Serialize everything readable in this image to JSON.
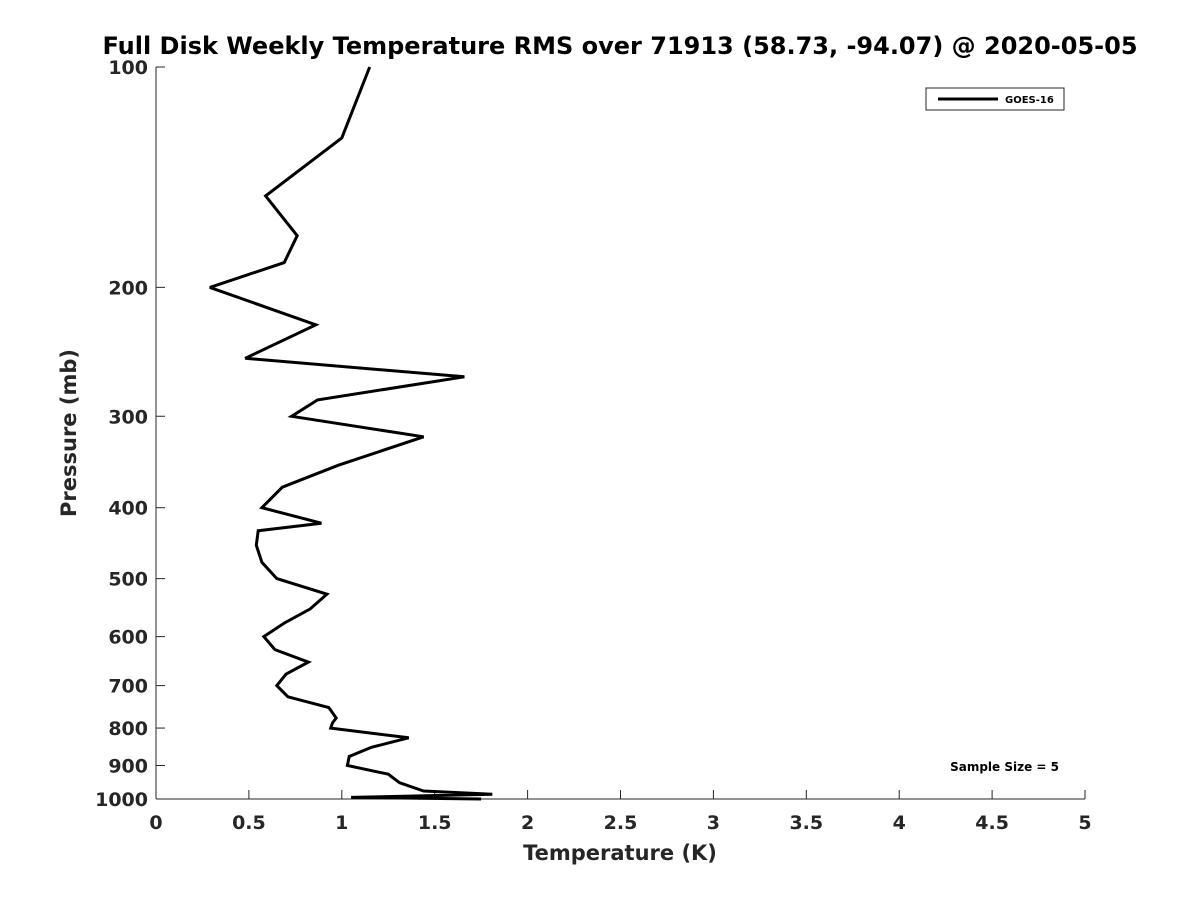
{
  "chart_data": {
    "type": "line",
    "title": "Full Disk Weekly Temperature RMS over 71913 (58.73, -94.07) @ 2020-05-05",
    "xlabel": "Temperature (K)",
    "ylabel": "Pressure (mb)",
    "xlim": [
      0,
      5
    ],
    "ylim": [
      100,
      1000
    ],
    "yscale": "log",
    "y_reversed": true,
    "xticks": [
      "0",
      "0.5",
      "1",
      "1.5",
      "2",
      "2.5",
      "3",
      "3.5",
      "4",
      "4.5",
      "5"
    ],
    "yticks": [
      "100",
      "200",
      "300",
      "400",
      "500",
      "600",
      "700",
      "800",
      "900",
      "1000"
    ],
    "grid": false,
    "legend_position": "top-right",
    "series": [
      {
        "name": "GOES-16",
        "color": "#000000",
        "x": [
          1.15,
          1.0,
          0.59,
          0.76,
          0.69,
          0.29,
          0.86,
          0.48,
          1.66,
          0.87,
          0.73,
          1.44,
          0.98,
          0.68,
          0.57,
          0.89,
          0.55,
          0.54,
          0.57,
          0.65,
          0.92,
          0.83,
          0.69,
          0.58,
          0.64,
          0.82,
          0.7,
          0.65,
          0.71,
          0.93,
          0.97,
          0.95,
          0.94,
          1.36,
          1.16,
          1.04,
          1.03,
          1.25,
          1.31,
          1.44,
          1.81,
          1.05,
          1.75
        ],
        "y": [
          100,
          125,
          150,
          170,
          185,
          200,
          225,
          250,
          265,
          285,
          300,
          320,
          350,
          375,
          400,
          420,
          430,
          450,
          475,
          500,
          525,
          550,
          575,
          600,
          625,
          650,
          675,
          700,
          725,
          750,
          775,
          787,
          800,
          825,
          850,
          875,
          900,
          925,
          950,
          975,
          985,
          995,
          1000
        ]
      }
    ],
    "annotation": "Sample Size = 5"
  }
}
